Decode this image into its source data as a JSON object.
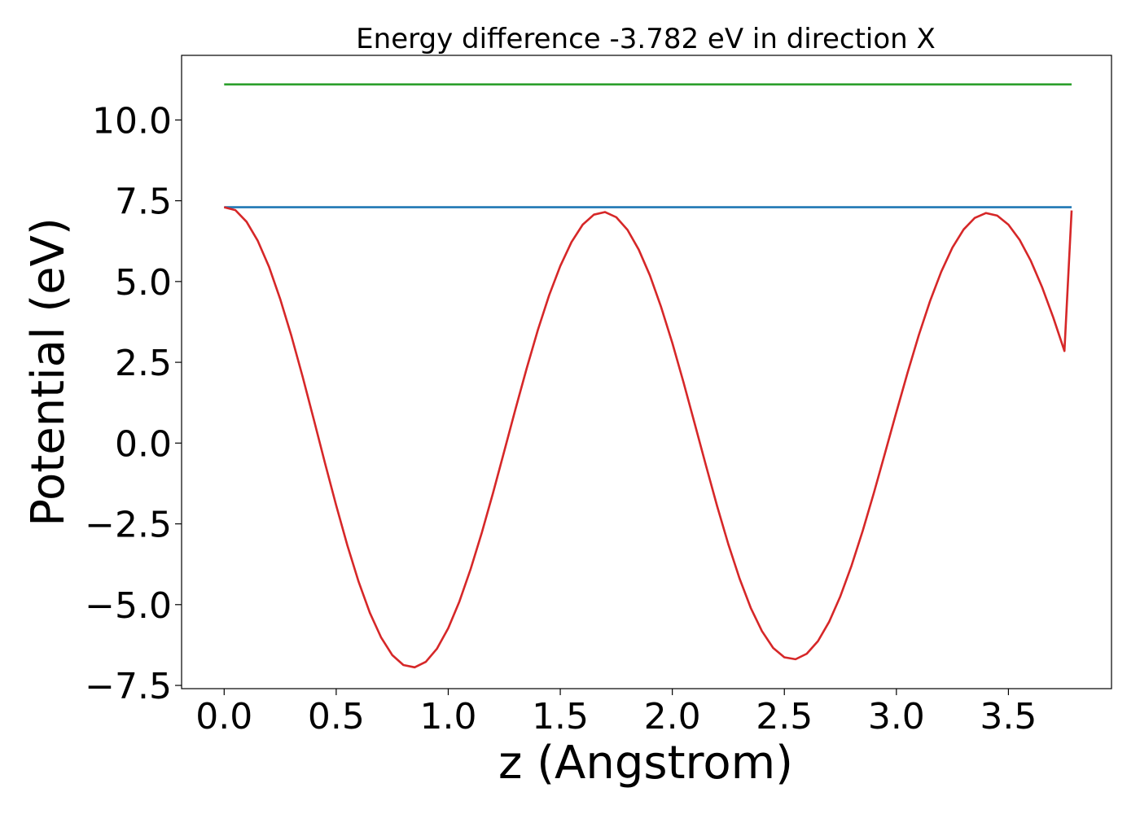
{
  "chart_data": {
    "type": "line",
    "title": "Energy difference -3.782 eV in direction X",
    "xlabel": "z (Angstrom)",
    "ylabel": "Potential (eV)",
    "xlim": [
      -0.19,
      3.96
    ],
    "ylim": [
      -7.6,
      12.0
    ],
    "xticks": [
      0.0,
      0.5,
      1.0,
      1.5,
      2.0,
      2.5,
      3.0,
      3.5
    ],
    "xtick_labels": [
      "0.0",
      "0.5",
      "1.0",
      "1.5",
      "2.0",
      "2.5",
      "3.0",
      "3.5"
    ],
    "yticks": [
      -7.5,
      -5.0,
      -2.5,
      0.0,
      2.5,
      5.0,
      7.5,
      10.0
    ],
    "ytick_labels": [
      "−7.5",
      "−5.0",
      "−2.5",
      "0.0",
      "2.5",
      "5.0",
      "7.5",
      "10.0"
    ],
    "grid": false,
    "series": [
      {
        "color": "#2ca02c",
        "x": [
          0.0,
          3.782
        ],
        "y": [
          11.1,
          11.1
        ]
      },
      {
        "color": "#1f77b4",
        "x": [
          0.0,
          3.782
        ],
        "y": [
          7.3,
          7.3
        ]
      },
      {
        "color": "#d62728",
        "x": [
          0.0,
          0.05,
          0.1,
          0.15,
          0.2,
          0.25,
          0.3,
          0.35,
          0.4,
          0.45,
          0.5,
          0.55,
          0.6,
          0.65,
          0.7,
          0.75,
          0.8,
          0.85,
          0.9,
          0.95,
          1.0,
          1.05,
          1.1,
          1.15,
          1.2,
          1.25,
          1.3,
          1.35,
          1.4,
          1.45,
          1.5,
          1.55,
          1.6,
          1.65,
          1.7,
          1.75,
          1.8,
          1.85,
          1.9,
          1.95,
          2.0,
          2.05,
          2.1,
          2.15,
          2.2,
          2.25,
          2.3,
          2.35,
          2.4,
          2.45,
          2.5,
          2.55,
          2.6,
          2.65,
          2.7,
          2.75,
          2.8,
          2.85,
          2.9,
          2.95,
          3.0,
          3.05,
          3.1,
          3.15,
          3.2,
          3.25,
          3.3,
          3.35,
          3.4,
          3.45,
          3.5,
          3.55,
          3.6,
          3.65,
          3.7,
          3.75,
          3.782
        ],
        "y": [
          7.3,
          7.21,
          6.85,
          6.26,
          5.46,
          4.46,
          3.32,
          2.06,
          0.73,
          -0.62,
          -1.93,
          -3.17,
          -4.29,
          -5.25,
          -6.01,
          -6.56,
          -6.87,
          -6.94,
          -6.77,
          -6.36,
          -5.73,
          -4.9,
          -3.9,
          -2.77,
          -1.54,
          -0.25,
          1.05,
          2.31,
          3.5,
          4.57,
          5.48,
          6.22,
          6.76,
          7.07,
          7.15,
          6.99,
          6.6,
          5.99,
          5.19,
          4.21,
          3.1,
          1.88,
          0.6,
          -0.69,
          -1.95,
          -3.13,
          -4.19,
          -5.1,
          -5.82,
          -6.34,
          -6.63,
          -6.69,
          -6.52,
          -6.13,
          -5.53,
          -4.74,
          -3.79,
          -2.71,
          -1.53,
          -0.29,
          0.96,
          2.18,
          3.34,
          4.39,
          5.3,
          6.05,
          6.61,
          6.97,
          7.12,
          7.04,
          6.76,
          6.29,
          5.64,
          4.83,
          3.89,
          2.85,
          7.2
        ]
      }
    ]
  }
}
